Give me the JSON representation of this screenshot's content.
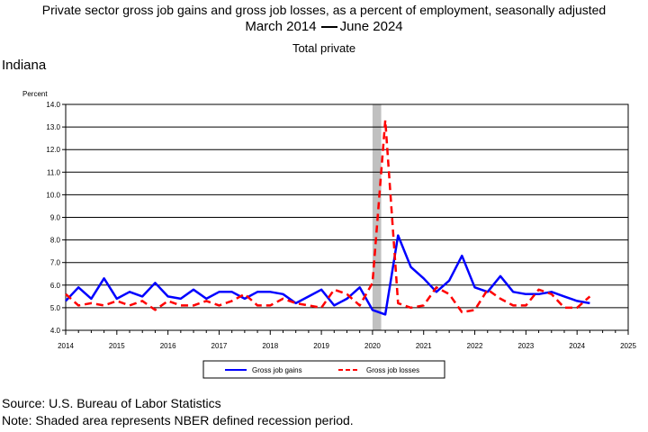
{
  "title": {
    "line1": "Private sector gross job gains and gross job losses, as a percent of employment, seasonally adjusted",
    "line2_start": "March 2014",
    "line2_end": "June 2024",
    "line3": "Total private"
  },
  "region": "Indiana",
  "footer": {
    "source": "Source: U.S. Bureau of Labor Statistics",
    "note": "Note: Shaded area represents NBER defined recession period."
  },
  "chart_data": {
    "type": "line",
    "ylabel": "Percent",
    "ylim": [
      4.0,
      14.0
    ],
    "yticks": [
      "4.0",
      "5.0",
      "6.0",
      "7.0",
      "8.0",
      "9.0",
      "10.0",
      "11.0",
      "12.0",
      "13.0",
      "14.0"
    ],
    "xlim": [
      2014,
      2025
    ],
    "xticks": [
      "2014",
      "2015",
      "2016",
      "2017",
      "2018",
      "2019",
      "2020",
      "2021",
      "2022",
      "2023",
      "2024",
      "2025"
    ],
    "grid": "horizontal",
    "legend_position": "bottom",
    "recession": {
      "start": 2020.0,
      "end": 2020.17,
      "color": "#c0c0c0"
    },
    "x": [
      2014.0,
      2014.25,
      2014.5,
      2014.75,
      2015.0,
      2015.25,
      2015.5,
      2015.75,
      2016.0,
      2016.25,
      2016.5,
      2016.75,
      2017.0,
      2017.25,
      2017.5,
      2017.75,
      2018.0,
      2018.25,
      2018.5,
      2018.75,
      2019.0,
      2019.25,
      2019.5,
      2019.75,
      2020.0,
      2020.25,
      2020.5,
      2020.75,
      2021.0,
      2021.25,
      2021.5,
      2021.75,
      2022.0,
      2022.25,
      2022.5,
      2022.75,
      2023.0,
      2023.25,
      2023.5,
      2023.75,
      2024.0,
      2024.25
    ],
    "series": [
      {
        "name": "Gross job gains",
        "color": "#0000ff",
        "dash": "solid",
        "values": [
          5.3,
          5.9,
          5.4,
          6.3,
          5.4,
          5.7,
          5.5,
          6.1,
          5.5,
          5.4,
          5.8,
          5.4,
          5.7,
          5.7,
          5.4,
          5.7,
          5.7,
          5.6,
          5.2,
          5.5,
          5.8,
          5.1,
          5.4,
          5.9,
          4.9,
          4.7,
          8.2,
          6.8,
          6.3,
          5.7,
          6.2,
          7.3,
          5.9,
          5.7,
          6.4,
          5.7,
          5.6,
          5.6,
          5.7,
          5.5,
          5.3,
          5.2
        ]
      },
      {
        "name": "Gross job losses",
        "color": "#ff0000",
        "dash": "dashed",
        "values": [
          5.6,
          5.1,
          5.2,
          5.1,
          5.3,
          5.1,
          5.3,
          4.9,
          5.3,
          5.1,
          5.1,
          5.3,
          5.1,
          5.3,
          5.6,
          5.1,
          5.1,
          5.4,
          5.2,
          5.1,
          5.0,
          5.8,
          5.6,
          5.1,
          6.1,
          13.3,
          5.2,
          5.0,
          5.1,
          5.9,
          5.6,
          4.8,
          4.9,
          5.8,
          5.4,
          5.1,
          5.1,
          5.8,
          5.6,
          5.0,
          5.0,
          5.5
        ]
      }
    ]
  }
}
